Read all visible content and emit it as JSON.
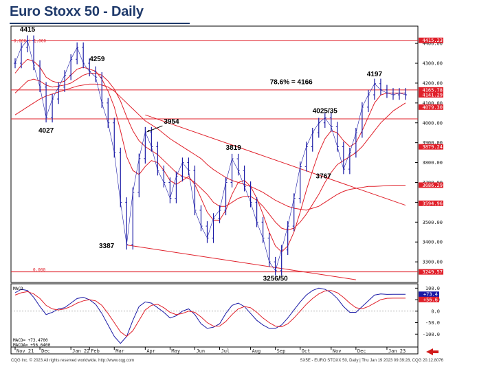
{
  "title": "Euro Stoxx 50 - Daily",
  "footer": {
    "left": "CQG Inc. © 2023 All rights reserved worldwide. http://www.cqg.com",
    "right": "SX5E - EURO STOXX 50, Daily | Thu Jan 19 2023 09:39:28, CQG 20.12.8076"
  },
  "macd_panel": {
    "label": "MACD",
    "readout_macd": "MACD=    +73.4700",
    "readout_macda": "MACDA=  +56.6400",
    "value_tags": [
      "+73.4",
      "+56.6"
    ]
  },
  "colors": {
    "title": "#1f3a6b",
    "series": "#1a1aa6",
    "level_lines": "#e0202a",
    "tag_fill": "#e0202a"
  },
  "chart_data": [
    {
      "type": "line",
      "subtype": "ohlc-bar",
      "title": "Euro Stoxx 50 - Daily",
      "x_labels": [
        "Nov 21",
        "Dec",
        "Jan 22",
        "Feb",
        "Mar",
        "Apr",
        "May",
        "Jun",
        "Jul",
        "Aug",
        "Sep",
        "Oct",
        "Nov",
        "Dec",
        "Jan 23"
      ],
      "yticks": [
        3300,
        3400,
        3500,
        3600,
        3700,
        3800,
        3900,
        4000,
        4100,
        4200,
        4300,
        4400
      ],
      "ytick_labels": [
        "3300.00",
        "3400.00",
        "3500.00",
        "3600.00",
        "3700.00",
        "3800.00",
        "3900.00",
        "4000.00",
        "4100.00",
        "4200.00",
        "4300.00",
        "4400.00"
      ],
      "ylim": [
        3200,
        4480
      ],
      "x": [
        0,
        1,
        2,
        3,
        4,
        5,
        6,
        7,
        8,
        9,
        10,
        11,
        12,
        13,
        14,
        15,
        16,
        17,
        18,
        19,
        20,
        21,
        22,
        23,
        24,
        25,
        26,
        27,
        28,
        29,
        30,
        31,
        32,
        33,
        34,
        35,
        36,
        37,
        38,
        39,
        40,
        41,
        42,
        43,
        44,
        45,
        46,
        47,
        48,
        49,
        50,
        51,
        52,
        53,
        54,
        55,
        56,
        57,
        58,
        59,
        60,
        61,
        62,
        63
      ],
      "close": [
        4300,
        4380,
        4415,
        4290,
        4180,
        4027,
        4120,
        4180,
        4240,
        4320,
        4380,
        4300,
        4259,
        4230,
        4100,
        4000,
        3850,
        3600,
        3387,
        3650,
        3820,
        3954,
        3880,
        3760,
        3700,
        3620,
        3730,
        3800,
        3760,
        3560,
        3480,
        3420,
        3520,
        3560,
        3700,
        3819,
        3760,
        3680,
        3600,
        3500,
        3420,
        3300,
        3256,
        3360,
        3480,
        3620,
        3780,
        3880,
        3950,
        4000,
        4025,
        3980,
        3880,
        3767,
        3850,
        3950,
        4079,
        4141,
        4197,
        4166,
        4150,
        4141,
        4150,
        4141
      ],
      "moving_averages": [
        {
          "values": [
            4250,
            4290,
            4320,
            4310,
            4280,
            4230,
            4210,
            4200,
            4210,
            4240,
            4270,
            4280,
            4270,
            4260,
            4220,
            4160,
            4080,
            3960,
            3830,
            3760,
            3740,
            3780,
            3810,
            3800,
            3760,
            3710,
            3690,
            3710,
            3730,
            3690,
            3620,
            3550,
            3510,
            3510,
            3560,
            3640,
            3700,
            3710,
            3680,
            3620,
            3540,
            3450,
            3380,
            3350,
            3380,
            3450,
            3550,
            3660,
            3760,
            3850,
            3920,
            3960,
            3950,
            3910,
            3880,
            3900,
            3960,
            4030,
            4100,
            4140,
            4150,
            4150,
            4150,
            4150
          ]
        },
        {
          "values": [
            4150,
            4180,
            4210,
            4220,
            4210,
            4190,
            4180,
            4185,
            4190,
            4200,
            4220,
            4240,
            4250,
            4250,
            4240,
            4210,
            4170,
            4110,
            4030,
            3960,
            3910,
            3880,
            3860,
            3840,
            3810,
            3780,
            3750,
            3730,
            3720,
            3700,
            3670,
            3640,
            3600,
            3580,
            3580,
            3600,
            3620,
            3630,
            3630,
            3610,
            3580,
            3540,
            3500,
            3470,
            3460,
            3470,
            3500,
            3540,
            3590,
            3640,
            3700,
            3750,
            3790,
            3810,
            3830,
            3850,
            3880,
            3920,
            3960,
            4000,
            4030,
            4060,
            4080,
            4100
          ]
        },
        {
          "values": [
            4040,
            4060,
            4080,
            4100,
            4120,
            4135,
            4145,
            4155,
            4165,
            4175,
            4185,
            4190,
            4195,
            4195,
            4190,
            4180,
            4160,
            4130,
            4100,
            4070,
            4040,
            4010,
            3990,
            3970,
            3945,
            3920,
            3900,
            3880,
            3860,
            3840,
            3820,
            3790,
            3765,
            3745,
            3725,
            3710,
            3700,
            3690,
            3680,
            3665,
            3650,
            3630,
            3610,
            3595,
            3580,
            3570,
            3565,
            3560,
            3570,
            3580,
            3600,
            3620,
            3640,
            3655,
            3665,
            3670,
            3675,
            3680,
            3680,
            3682,
            3684,
            3686,
            3686,
            3686
          ]
        }
      ],
      "level_labels": [
        "4415.23",
        "4165.78",
        "4141.29",
        "4079.30",
        "3879.24",
        "3686.29",
        "3594.96",
        "3249.57"
      ],
      "level_values": [
        4415.23,
        4165.78,
        4141.29,
        4079.3,
        3879.24,
        3686.29,
        3594.96,
        3249.57
      ],
      "horizontal_lines": [
        4415.23,
        4165.78,
        4020,
        3249.57
      ],
      "fib_labels": [
        "0.000 | 1.000",
        "0.000"
      ],
      "annotations": [
        "4415",
        "4259",
        "4027",
        "3954",
        "3819",
        "78.6% = 4166",
        "4197",
        "4025/35",
        "3767",
        "3387",
        "3256/50"
      ],
      "trendlines": [
        {
          "from": [
            21,
            4040
          ],
          "to": [
            63,
            3585
          ]
        },
        {
          "from": [
            18,
            3385
          ],
          "to": [
            55,
            3210
          ]
        }
      ]
    },
    {
      "type": "line",
      "title": "MACD",
      "ylim": [
        -150,
        110
      ],
      "yticks": [
        100,
        50,
        0,
        -50,
        -100
      ],
      "ytick_labels": [
        "100.0",
        "50.0",
        "0.0",
        "-50.0",
        "-100.0"
      ],
      "series": [
        {
          "name": "MACD",
          "values": [
            80,
            95,
            90,
            60,
            20,
            -15,
            -5,
            10,
            15,
            35,
            55,
            60,
            50,
            30,
            -10,
            -60,
            -110,
            -140,
            -110,
            -40,
            20,
            40,
            35,
            15,
            -5,
            -30,
            -20,
            0,
            10,
            -15,
            -55,
            -75,
            -70,
            -55,
            -10,
            25,
            35,
            20,
            -10,
            -40,
            -60,
            -75,
            -75,
            -60,
            -30,
            5,
            40,
            70,
            90,
            100,
            95,
            80,
            55,
            20,
            -5,
            -5,
            20,
            45,
            70,
            75,
            73,
            73.47,
            73.47,
            73.47
          ]
        },
        {
          "name": "MACDA",
          "values": [
            70,
            80,
            85,
            75,
            55,
            25,
            10,
            5,
            10,
            20,
            35,
            45,
            50,
            45,
            25,
            -10,
            -50,
            -90,
            -110,
            -85,
            -40,
            5,
            25,
            30,
            15,
            -5,
            -15,
            -10,
            0,
            -5,
            -25,
            -50,
            -65,
            -65,
            -45,
            -15,
            10,
            20,
            15,
            -5,
            -30,
            -50,
            -65,
            -68,
            -55,
            -30,
            0,
            30,
            55,
            75,
            88,
            90,
            80,
            60,
            35,
            15,
            10,
            20,
            35,
            50,
            56,
            56.64,
            56.64,
            56.64
          ]
        }
      ]
    }
  ]
}
